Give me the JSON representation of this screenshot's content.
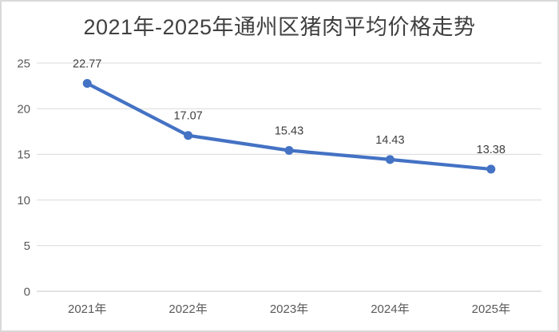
{
  "chart_data": {
    "type": "line",
    "title": "2021年-2025年通州区猪肉平均价格走势",
    "categories": [
      "2021年",
      "2022年",
      "2023年",
      "2024年",
      "2025年"
    ],
    "values": [
      22.77,
      17.07,
      15.43,
      14.43,
      13.38
    ],
    "data_labels": [
      "22.77",
      "17.07",
      "15.43",
      "14.43",
      "13.38"
    ],
    "xlabel": "",
    "ylabel": "",
    "ylim": [
      0,
      25
    ],
    "yticks": [
      0,
      5,
      10,
      15,
      20,
      25
    ],
    "grid": "horizontal",
    "legend": "none",
    "colors": {
      "line": "#4472C4",
      "marker": "#4472C4",
      "gridline": "#D9D9D9",
      "axis_line": "#C6C6C6",
      "tick_label": "#595959",
      "data_label": "#3F3F3F",
      "title": "#404040",
      "border": "#D9D9D9",
      "background": "#FFFFFF"
    }
  }
}
